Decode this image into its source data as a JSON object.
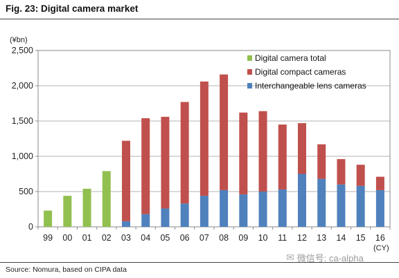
{
  "header": {
    "title": "Fig. 23: Digital camera market"
  },
  "footer": {
    "source": "Source: Nomura, based on CIPA data"
  },
  "watermark": {
    "icon": "wechat-icon",
    "text": "微信号: ca-alpha"
  },
  "chart_data": {
    "type": "bar",
    "stacked": true,
    "categories": [
      "99",
      "00",
      "01",
      "02",
      "03",
      "04",
      "05",
      "06",
      "07",
      "08",
      "09",
      "10",
      "11",
      "12",
      "13",
      "14",
      "15",
      "16"
    ],
    "y_unit": "(¥bn)",
    "x_unit": "(CY)",
    "ylim": [
      0,
      2500
    ],
    "yticks": [
      0,
      500,
      1000,
      1500,
      2000,
      2500
    ],
    "ytick_labels": [
      "0",
      "500",
      "1,000",
      "1,500",
      "2,000",
      "2,500"
    ],
    "grid": true,
    "legend_position": "top-right",
    "series": [
      {
        "name": "Digital camera total",
        "color": "#92c050",
        "values": [
          230,
          440,
          540,
          790,
          null,
          null,
          null,
          null,
          null,
          null,
          null,
          null,
          null,
          null,
          null,
          null,
          null,
          null
        ]
      },
      {
        "name": "Interchangeable lens cameras",
        "color": "#4f81bd",
        "values": [
          null,
          null,
          null,
          null,
          80,
          180,
          260,
          330,
          440,
          520,
          460,
          500,
          530,
          750,
          680,
          600,
          580,
          520
        ]
      },
      {
        "name": "Digital compact cameras",
        "color": "#c0504d",
        "values": [
          null,
          null,
          null,
          null,
          1140,
          1360,
          1300,
          1440,
          1620,
          1640,
          1160,
          1140,
          920,
          720,
          490,
          360,
          300,
          190
        ]
      }
    ],
    "legend_order": [
      "Digital camera total",
      "Digital compact cameras",
      "Interchangeable lens cameras"
    ]
  }
}
